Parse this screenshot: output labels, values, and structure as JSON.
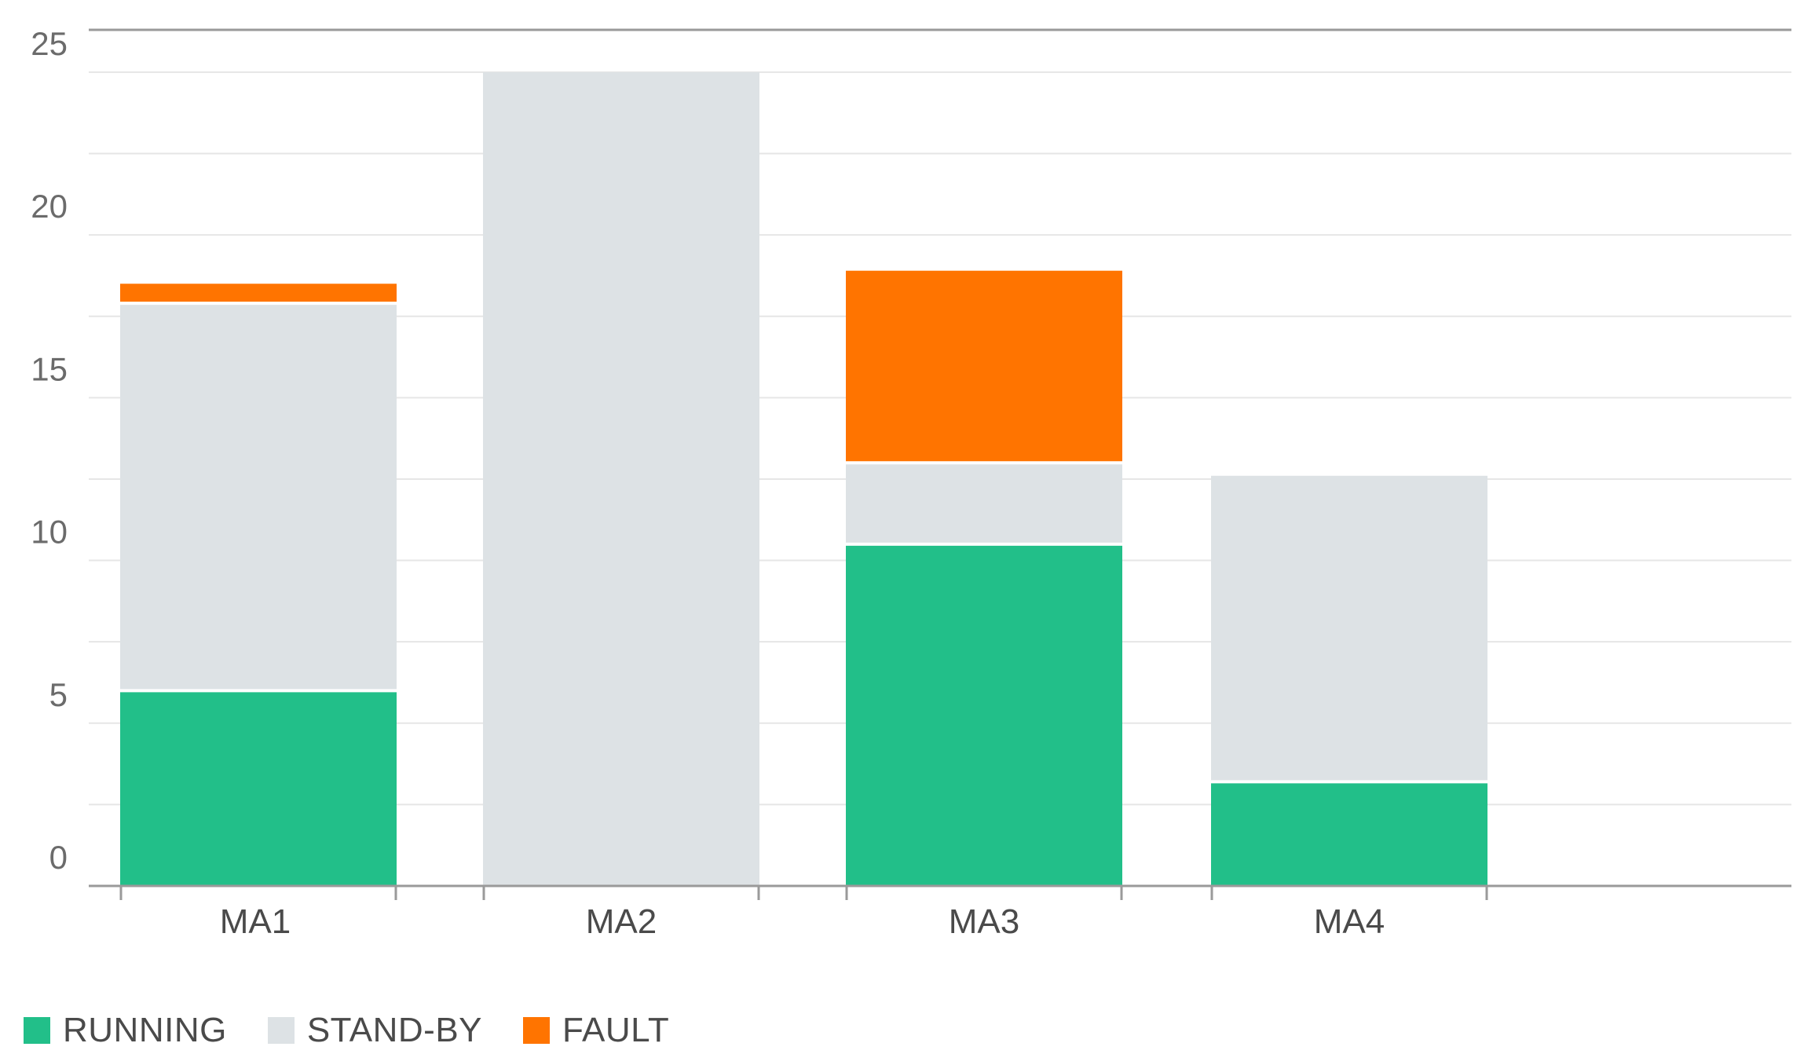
{
  "chart_data": {
    "type": "bar",
    "stacked": true,
    "categories": [
      "MA1",
      "MA2",
      "MA3",
      "MA4"
    ],
    "series": [
      {
        "name": "RUNNING",
        "color": "#22bf89",
        "values": [
          6,
          0,
          10.5,
          3.2
        ]
      },
      {
        "name": "STAND-BY",
        "color": "#dde2e5",
        "values": [
          11.9,
          25,
          2.5,
          9.4
        ]
      },
      {
        "name": "FAULT",
        "color": "#ff7400",
        "values": [
          0.6,
          0,
          5.9,
          0
        ]
      }
    ],
    "yticks": [
      0,
      5,
      10,
      15,
      20,
      25
    ],
    "ylim": [
      0,
      26.3
    ],
    "title": "",
    "xlabel": "",
    "ylabel": "",
    "grid": true,
    "legend_position": "bottom-left"
  }
}
